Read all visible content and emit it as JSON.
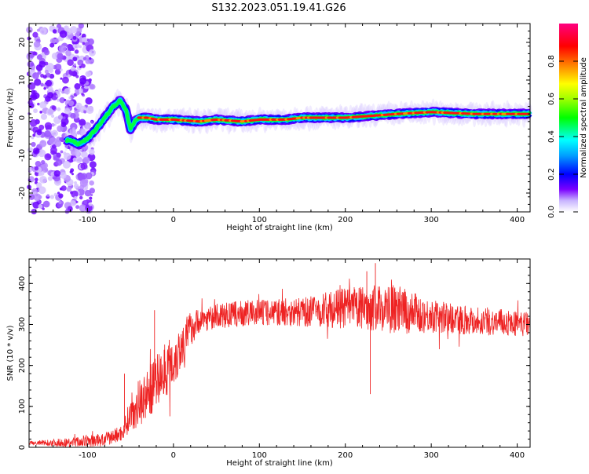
{
  "title": "S132.2023.051.19.41.G26",
  "chart_data": [
    {
      "type": "heatmap",
      "xlabel": "Height of straight line (km)",
      "ylabel": "Frequency (Hz)",
      "xlim": [
        -168,
        415
      ],
      "ylim": [
        -25,
        25
      ],
      "x_ticks": [
        -100,
        0,
        100,
        200,
        300,
        400
      ],
      "y_ticks": [
        -20,
        -10,
        0,
        10,
        20
      ],
      "colorbar": {
        "label": "Normalized spectral amplitude",
        "ticks": [
          "0.0",
          "0.2",
          "0.4",
          "0.6",
          "0.8"
        ],
        "range": [
          0,
          1
        ],
        "colors": [
          "#ffffff",
          "#7a00ff",
          "#0000ff",
          "#00ffff",
          "#00ff00",
          "#ffff00",
          "#ff8000",
          "#ff0000",
          "#ff0080"
        ]
      },
      "ridge": {
        "x": [
          -120,
          -110,
          -100,
          -90,
          -80,
          -70,
          -62,
          -55,
          -50,
          -45,
          -40,
          -30,
          -20,
          0,
          30,
          50,
          80,
          100,
          130,
          150,
          170,
          200,
          230,
          260,
          300,
          350,
          400,
          415
        ],
        "y": [
          -6,
          -7,
          -5.5,
          -3,
          0,
          3,
          4.5,
          2,
          -3,
          -1,
          0,
          0,
          -0.5,
          -0.5,
          -1,
          -0.5,
          -1,
          -0.5,
          -0.5,
          0,
          0,
          0,
          0.5,
          1,
          1.5,
          1,
          1,
          1
        ]
      }
    },
    {
      "type": "line",
      "xlabel": "Height of straight line (km)",
      "ylabel": "SNR (10 * v/v)",
      "xlim": [
        -168,
        415
      ],
      "ylim": [
        0,
        460
      ],
      "x_ticks": [
        -100,
        0,
        100,
        200,
        300,
        400
      ],
      "y_ticks": [
        0,
        100,
        200,
        300,
        400
      ],
      "color": "#ee2222",
      "trend": {
        "x": [
          -168,
          -120,
          -80,
          -60,
          -50,
          -40,
          -30,
          -20,
          -10,
          0,
          10,
          20,
          30,
          50,
          100,
          150,
          200,
          250,
          300,
          350,
          415
        ],
        "y": [
          10,
          12,
          18,
          35,
          80,
          110,
          130,
          160,
          190,
          210,
          250,
          290,
          310,
          320,
          330,
          330,
          340,
          340,
          320,
          310,
          300
        ]
      },
      "jitter": {
        "x": [
          -168,
          -60,
          -40,
          0,
          30,
          150,
          200,
          260,
          300,
          415
        ],
        "y": [
          5,
          20,
          60,
          70,
          30,
          35,
          50,
          60,
          40,
          30
        ]
      },
      "notable_spikes": [
        {
          "x": 235,
          "y": 450
        },
        {
          "x": 225,
          "y": 430
        },
        {
          "x": 229,
          "y": 130
        },
        {
          "x": -57,
          "y": 180
        },
        {
          "x": -22,
          "y": 335
        }
      ]
    }
  ]
}
